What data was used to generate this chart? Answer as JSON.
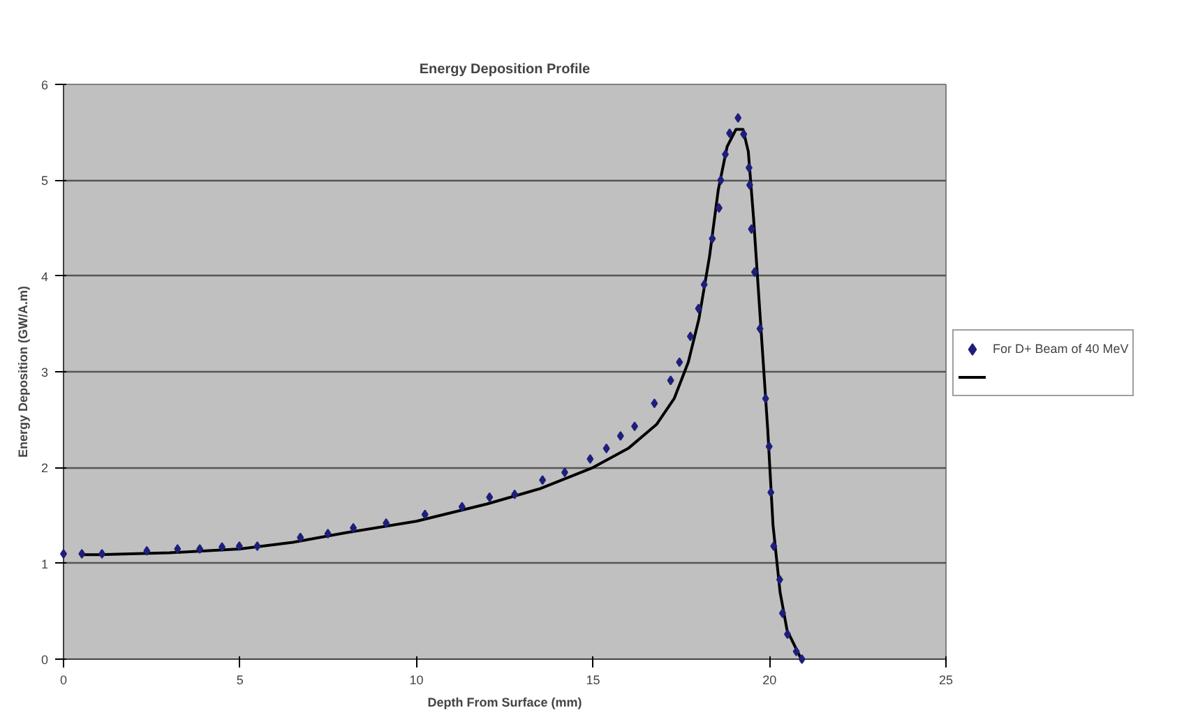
{
  "chart_data": {
    "type": "scatter",
    "title": "Energy Deposition Profile",
    "xlabel": "Depth From Surface (mm)",
    "ylabel": "Energy Deposition (GW/A.m)",
    "xlim": [
      0,
      25
    ],
    "xticks": [
      0,
      5,
      10,
      15,
      20,
      25
    ],
    "ylim": [
      0,
      6
    ],
    "yticks": [
      0,
      1,
      2,
      3,
      4,
      5,
      6
    ],
    "grid": "y",
    "legend": "right",
    "series": [
      {
        "name": "For D+ Beam of 40 MeV",
        "marker": "diamond",
        "color": "#1f1f7a",
        "x": [
          0,
          0.52,
          1.09,
          2.36,
          3.23,
          3.86,
          4.49,
          4.98,
          5.49,
          6.71,
          7.49,
          8.21,
          9.14,
          10.24,
          11.29,
          12.07,
          12.78,
          13.57,
          14.2,
          14.92,
          15.38,
          15.78,
          16.18,
          16.74,
          17.2,
          17.45,
          17.76,
          17.99,
          18.15,
          18.38,
          18.57,
          18.62,
          18.75,
          18.87,
          19.11,
          19.27,
          19.42,
          19.44,
          19.49,
          19.58,
          19.73,
          19.89,
          19.99,
          20.04,
          20.12,
          20.29,
          20.37,
          20.51,
          20.76,
          20.92
        ],
        "values": [
          1.1,
          1.1,
          1.1,
          1.13,
          1.15,
          1.15,
          1.17,
          1.18,
          1.18,
          1.27,
          1.31,
          1.37,
          1.42,
          1.51,
          1.59,
          1.69,
          1.72,
          1.87,
          1.95,
          2.09,
          2.2,
          2.33,
          2.43,
          2.67,
          2.91,
          3.1,
          3.37,
          3.66,
          3.91,
          4.39,
          4.71,
          5.0,
          5.27,
          5.49,
          5.65,
          5.48,
          5.13,
          4.95,
          4.49,
          4.04,
          3.45,
          2.72,
          2.22,
          1.74,
          1.18,
          0.83,
          0.48,
          0.26,
          0.08,
          0.0
        ]
      },
      {
        "type": "line",
        "line_style": "solid",
        "color": "#000000",
        "x": [
          0.5,
          1,
          3,
          5,
          6.5,
          8,
          10,
          12,
          13.5,
          15,
          16,
          16.8,
          17.3,
          17.7,
          18,
          18.3,
          18.55,
          18.8,
          19.05,
          19.25,
          19.4,
          19.55,
          19.75,
          19.95,
          20.1,
          20.3,
          20.5,
          20.9
        ],
        "values": [
          1.09,
          1.09,
          1.11,
          1.15,
          1.22,
          1.32,
          1.44,
          1.62,
          1.78,
          2.0,
          2.2,
          2.45,
          2.72,
          3.1,
          3.55,
          4.2,
          4.9,
          5.35,
          5.53,
          5.53,
          5.3,
          4.6,
          3.5,
          2.4,
          1.4,
          0.7,
          0.3,
          0.0
        ]
      }
    ]
  }
}
